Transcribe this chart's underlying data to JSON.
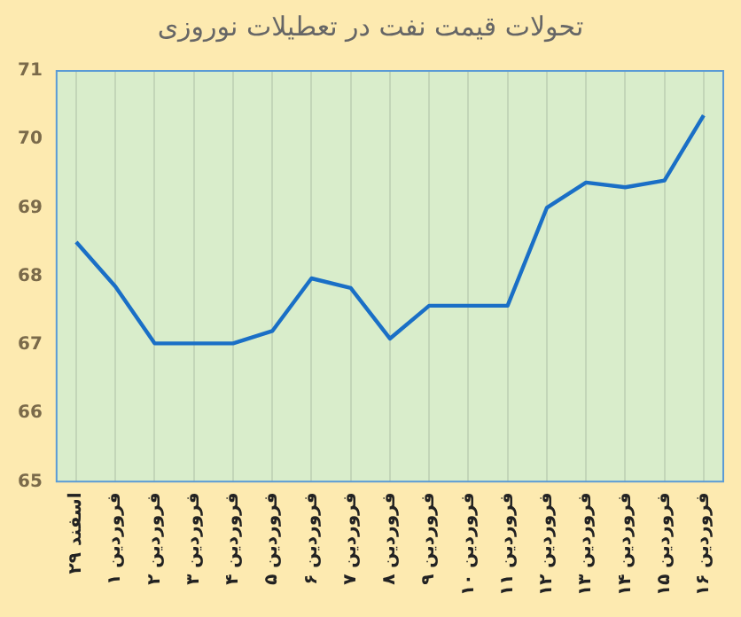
{
  "chart_data": {
    "type": "line",
    "title": "تحولات قیمت نفت در تعطیلات نوروزی",
    "categories": [
      "۲۹ اسفند",
      "۱ فروردین",
      "۲ فروردین",
      "۳ فروردین",
      "۴ فروردین",
      "۵ فروردین",
      "۶ فروردین",
      "۷ فروردین",
      "۸ فروردین",
      "۹ فروردین",
      "۱۰ فروردین",
      "۱۱ فروردین",
      "۱۲ فروردین",
      "۱۳ فروردین",
      "۱۴ فروردین",
      "۱۵ فروردین",
      "۱۶ فروردین"
    ],
    "series": [
      {
        "color": "#1a6fc6",
        "values": [
          68.5,
          67.85,
          67.02,
          67.02,
          67.02,
          67.2,
          67.97,
          67.83,
          67.09,
          67.57,
          67.57,
          67.57,
          69.0,
          69.37,
          69.3,
          69.4,
          70.35
        ]
      }
    ],
    "ylim": [
      65,
      71
    ],
    "yticks": [
      65,
      66,
      67,
      68,
      69,
      70,
      71
    ],
    "grid": "x",
    "legend": false,
    "marker": "none",
    "line_style": "solid"
  }
}
